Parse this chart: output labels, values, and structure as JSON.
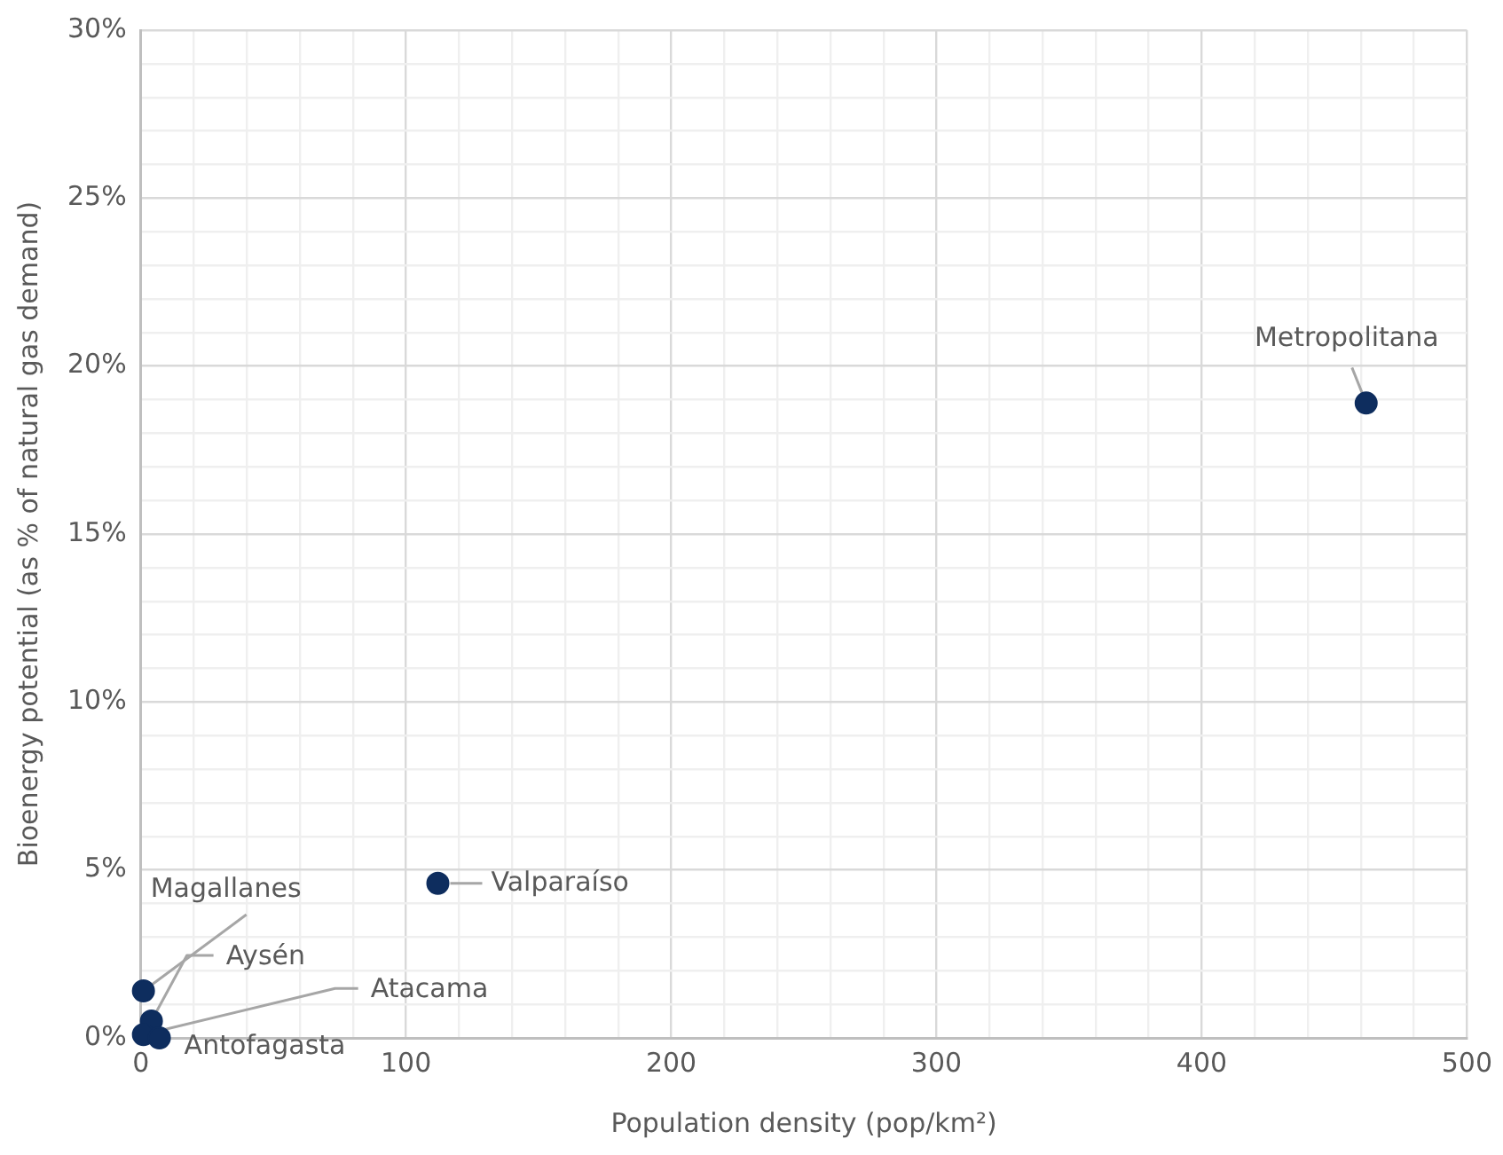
{
  "chart_data": {
    "type": "scatter",
    "xlabel": "Population density (pop/km²)",
    "ylabel": "Bioenergy potential (as % of natural gas demand)",
    "series": [
      {
        "color": "#0e2d5e",
        "x": [
          462,
          112,
          1,
          4,
          1,
          7
        ],
        "values": [
          18.9,
          4.6,
          1.4,
          0.5,
          0.1,
          0.0
        ]
      }
    ],
    "annotations": [
      {
        "text": "Metropolitana",
        "x": 462,
        "y": 18.9
      },
      {
        "text": "Valparaíso",
        "x": 112,
        "y": 4.6
      },
      {
        "text": "Magallanes",
        "x": 1,
        "y": 1.4
      },
      {
        "text": "Aysén",
        "x": 4,
        "y": 0.5
      },
      {
        "text": "Atacama",
        "x": 1,
        "y": 0.1
      },
      {
        "text": "Antofagasta",
        "x": 7,
        "y": 0.0
      }
    ],
    "xlim": [
      0,
      500
    ],
    "xticks": [
      0,
      {
        "value": 20,
        "label": null
      },
      {
        "value": 40,
        "label": null
      },
      {
        "value": 60,
        "label": null
      },
      {
        "value": 80,
        "label": null
      },
      100,
      {
        "value": 120,
        "label": null
      },
      {
        "value": 140,
        "label": null
      },
      {
        "value": 160,
        "label": null
      },
      {
        "value": 180,
        "label": null
      },
      200,
      {
        "value": 220,
        "label": null
      },
      {
        "value": 240,
        "label": null
      },
      {
        "value": 260,
        "label": null
      },
      {
        "value": 280,
        "label": null
      },
      300,
      {
        "value": 320,
        "label": null
      },
      {
        "value": 340,
        "label": null
      },
      {
        "value": 360,
        "label": null
      },
      {
        "value": 380,
        "label": null
      },
      400,
      {
        "value": 420,
        "label": null
      },
      {
        "value": 440,
        "label": null
      },
      {
        "value": 460,
        "label": null
      },
      {
        "value": 480,
        "label": null
      },
      500
    ],
    "ylim": [
      0,
      30
    ],
    "yticks": [
      {
        "value": 0,
        "label": "0%"
      },
      {
        "value": 1,
        "label": null
      },
      {
        "value": 2,
        "label": null
      },
      {
        "value": 3,
        "label": null
      },
      {
        "value": 4,
        "label": null
      },
      {
        "value": 5,
        "label": "5%"
      },
      {
        "value": 6,
        "label": null
      },
      {
        "value": 7,
        "label": null
      },
      {
        "value": 8,
        "label": null
      },
      {
        "value": 9,
        "label": null
      },
      {
        "value": 10,
        "label": "10%"
      },
      {
        "value": 11,
        "label": null
      },
      {
        "value": 12,
        "label": null
      },
      {
        "value": 13,
        "label": null
      },
      {
        "value": 14,
        "label": null
      },
      {
        "value": 15,
        "label": "15%"
      },
      {
        "value": 16,
        "label": null
      },
      {
        "value": 17,
        "label": null
      },
      {
        "value": 18,
        "label": null
      },
      {
        "value": 19,
        "label": null
      },
      {
        "value": 20,
        "label": "20%"
      },
      {
        "value": 21,
        "label": null
      },
      {
        "value": 22,
        "label": null
      },
      {
        "value": 23,
        "label": null
      },
      {
        "value": 24,
        "label": null
      },
      {
        "value": 25,
        "label": "25%"
      },
      {
        "value": 26,
        "label": null
      },
      {
        "value": 27,
        "label": null
      },
      {
        "value": 28,
        "label": null
      },
      {
        "value": 29,
        "label": null
      },
      {
        "value": 30,
        "label": "30%"
      }
    ],
    "grid": true,
    "legend": false,
    "marker": "circle"
  }
}
